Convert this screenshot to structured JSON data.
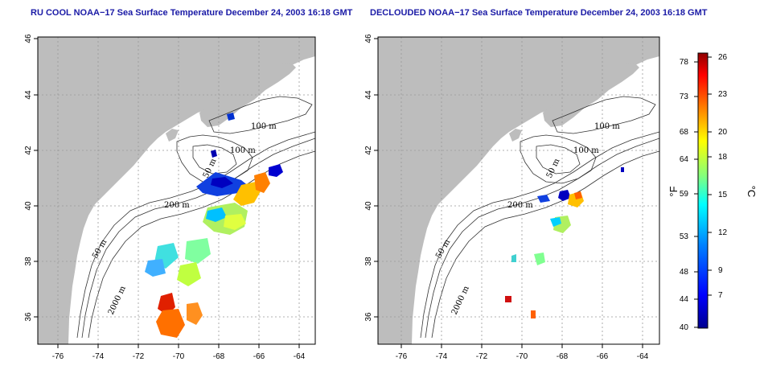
{
  "panels": [
    {
      "title": "RU COOL NOAA−17 Sea Surface Temperature December 24, 2003 16:18 GMT"
    },
    {
      "title": "DECLOUDED NOAA−17 Sea Surface Temperature December 24, 2003 16:18 GMT"
    }
  ],
  "axes": {
    "lat_ticks": [
      "46",
      "44",
      "42",
      "40",
      "38",
      "36"
    ],
    "lon_ticks": [
      "-76",
      "-74",
      "-72",
      "-70",
      "-68",
      "-66",
      "-64"
    ]
  },
  "contour_labels": [
    "100 m",
    "100 m",
    "50 m",
    "200 m",
    "50 m",
    "2000 m"
  ],
  "colorbar": {
    "fahrenheit_ticks": [
      "78",
      "73",
      "68",
      "64",
      "59",
      "53",
      "48",
      "44",
      "40"
    ],
    "celsius_ticks": [
      "26",
      "23",
      "20",
      "18",
      "15",
      "12",
      "9",
      "7"
    ],
    "fahrenheit_label": "°F",
    "celsius_label": "°C"
  },
  "colors": {
    "land": "#bdbdbd",
    "title": "#1a1aa6"
  }
}
